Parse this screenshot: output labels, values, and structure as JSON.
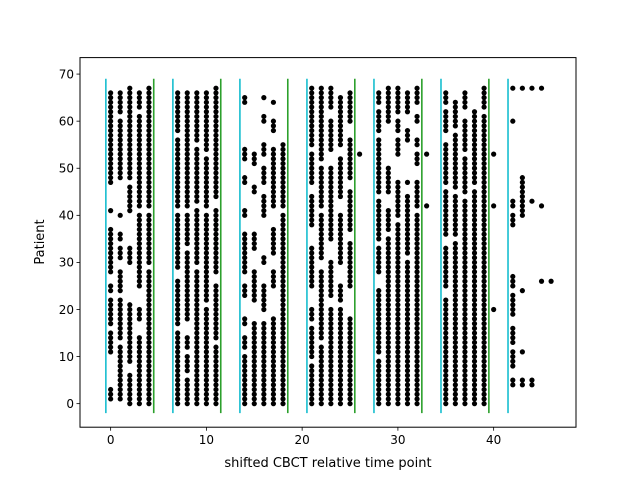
{
  "chart_data": {
    "type": "scatter",
    "title": "",
    "xlabel": "shifted CBCT relative time point",
    "ylabel": "Patient",
    "xlim": [
      -3.2,
      48.6
    ],
    "ylim": [
      -5,
      73.5
    ],
    "xticks": [
      0,
      10,
      20,
      30,
      40
    ],
    "yticks": [
      0,
      10,
      20,
      30,
      40,
      50,
      60,
      70
    ],
    "grid": false,
    "legend": "none",
    "marker_color": "#000000",
    "note": "Points are estimated: each column of dots represents patients (y) imaged at a relative CBCT time point (x).",
    "columns": [
      {
        "x": 0,
        "y_ranges": [
          [
            1,
            3
          ],
          [
            11,
            15
          ],
          [
            17,
            22
          ],
          [
            24,
            25
          ],
          [
            28,
            37
          ],
          [
            41,
            41
          ],
          [
            47,
            66
          ]
        ]
      },
      {
        "x": 1,
        "y_ranges": [
          [
            1,
            12
          ],
          [
            14,
            22
          ],
          [
            24,
            28
          ],
          [
            31,
            33
          ],
          [
            35,
            36
          ],
          [
            40,
            40
          ],
          [
            48,
            60
          ],
          [
            62,
            66
          ]
        ]
      },
      {
        "x": 2,
        "y_ranges": [
          [
            0,
            6
          ],
          [
            9,
            21
          ],
          [
            30,
            33
          ],
          [
            41,
            46
          ],
          [
            48,
            67
          ]
        ]
      },
      {
        "x": 3,
        "y_ranges": [
          [
            0,
            14
          ],
          [
            18,
            20
          ],
          [
            25,
            40
          ],
          [
            42,
            61
          ],
          [
            63,
            66
          ]
        ]
      },
      {
        "x": 4,
        "y_ranges": [
          [
            0,
            28
          ],
          [
            30,
            40
          ],
          [
            42,
            67
          ]
        ]
      },
      {
        "x": 7,
        "y_ranges": [
          [
            0,
            15
          ],
          [
            17,
            26
          ],
          [
            29,
            40
          ],
          [
            42,
            56
          ],
          [
            58,
            66
          ]
        ]
      },
      {
        "x": 8,
        "y_ranges": [
          [
            0,
            5
          ],
          [
            7,
            10
          ],
          [
            12,
            14
          ],
          [
            18,
            32
          ],
          [
            34,
            40
          ],
          [
            42,
            66
          ]
        ]
      },
      {
        "x": 9,
        "y_ranges": [
          [
            0,
            28
          ],
          [
            30,
            41
          ],
          [
            43,
            54
          ],
          [
            56,
            66
          ]
        ]
      },
      {
        "x": 10,
        "y_ranges": [
          [
            0,
            20
          ],
          [
            22,
            40
          ],
          [
            42,
            52
          ],
          [
            54,
            66
          ]
        ]
      },
      {
        "x": 11,
        "y_ranges": [
          [
            0,
            12
          ],
          [
            14,
            25
          ],
          [
            28,
            41
          ],
          [
            44,
            67
          ]
        ]
      },
      {
        "x": 14,
        "y_ranges": [
          [
            0,
            10
          ],
          [
            12,
            14
          ],
          [
            17,
            18
          ],
          [
            23,
            25
          ],
          [
            28,
            36
          ],
          [
            40,
            41
          ],
          [
            47,
            48
          ],
          [
            52,
            54
          ],
          [
            64,
            65
          ]
        ]
      },
      {
        "x": 15,
        "y_ranges": [
          [
            0,
            17
          ],
          [
            22,
            28
          ],
          [
            33,
            36
          ],
          [
            45,
            46
          ],
          [
            51,
            53
          ]
        ]
      },
      {
        "x": 16,
        "y_ranges": [
          [
            0,
            17
          ],
          [
            20,
            25
          ],
          [
            30,
            31
          ],
          [
            40,
            44
          ],
          [
            47,
            50
          ],
          [
            53,
            55
          ],
          [
            60,
            61
          ],
          [
            65,
            65
          ]
        ]
      },
      {
        "x": 17,
        "y_ranges": [
          [
            0,
            18
          ],
          [
            25,
            28
          ],
          [
            32,
            37
          ],
          [
            42,
            54
          ],
          [
            58,
            60
          ],
          [
            64,
            64
          ]
        ]
      },
      {
        "x": 18,
        "y_ranges": [
          [
            0,
            40
          ],
          [
            42,
            55
          ]
        ]
      },
      {
        "x": 21,
        "y_ranges": [
          [
            0,
            8
          ],
          [
            10,
            16
          ],
          [
            18,
            20
          ],
          [
            25,
            33
          ],
          [
            38,
            44
          ],
          [
            47,
            53
          ],
          [
            55,
            67
          ]
        ]
      },
      {
        "x": 22,
        "y_ranges": [
          [
            0,
            12
          ],
          [
            14,
            28
          ],
          [
            31,
            40
          ],
          [
            42,
            50
          ],
          [
            52,
            67
          ]
        ]
      },
      {
        "x": 23,
        "y_ranges": [
          [
            0,
            20
          ],
          [
            23,
            30
          ],
          [
            35,
            50
          ],
          [
            54,
            60
          ],
          [
            63,
            67
          ]
        ]
      },
      {
        "x": 24,
        "y_ranges": [
          [
            0,
            20
          ],
          [
            22,
            25
          ],
          [
            30,
            40
          ],
          [
            44,
            52
          ],
          [
            55,
            65
          ]
        ]
      },
      {
        "x": 25,
        "y_ranges": [
          [
            0,
            18
          ],
          [
            25,
            34
          ],
          [
            37,
            45
          ],
          [
            48,
            56
          ],
          [
            60,
            66
          ]
        ]
      },
      {
        "x": 26,
        "y_ranges": [
          [
            53,
            53
          ]
        ]
      },
      {
        "x": 28,
        "y_ranges": [
          [
            0,
            9
          ],
          [
            11,
            24
          ],
          [
            28,
            33
          ],
          [
            35,
            43
          ],
          [
            45,
            56
          ],
          [
            58,
            62
          ],
          [
            64,
            66
          ]
        ]
      },
      {
        "x": 29,
        "y_ranges": [
          [
            0,
            35
          ],
          [
            37,
            41
          ],
          [
            45,
            50
          ],
          [
            60,
            67
          ]
        ]
      },
      {
        "x": 30,
        "y_ranges": [
          [
            0,
            38
          ],
          [
            40,
            47
          ],
          [
            53,
            56
          ],
          [
            58,
            60
          ],
          [
            62,
            67
          ]
        ]
      },
      {
        "x": 31,
        "y_ranges": [
          [
            0,
            30
          ],
          [
            32,
            44
          ],
          [
            47,
            47
          ],
          [
            56,
            58
          ],
          [
            62,
            66
          ]
        ]
      },
      {
        "x": 32,
        "y_ranges": [
          [
            0,
            40
          ],
          [
            42,
            47
          ],
          [
            51,
            53
          ],
          [
            55,
            56
          ],
          [
            60,
            61
          ],
          [
            64,
            67
          ]
        ]
      },
      {
        "x": 33,
        "y_ranges": [
          [
            42,
            42
          ],
          [
            53,
            53
          ]
        ]
      },
      {
        "x": 35,
        "y_ranges": [
          [
            0,
            22
          ],
          [
            25,
            33
          ],
          [
            36,
            45
          ],
          [
            47,
            55
          ],
          [
            58,
            62
          ],
          [
            64,
            66
          ]
        ]
      },
      {
        "x": 36,
        "y_ranges": [
          [
            0,
            34
          ],
          [
            36,
            44
          ],
          [
            46,
            57
          ],
          [
            59,
            64
          ]
        ]
      },
      {
        "x": 37,
        "y_ranges": [
          [
            0,
            43
          ],
          [
            45,
            52
          ],
          [
            54,
            60
          ],
          [
            63,
            66
          ]
        ]
      },
      {
        "x": 38,
        "y_ranges": [
          [
            0,
            45
          ],
          [
            47,
            62
          ]
        ]
      },
      {
        "x": 39,
        "y_ranges": [
          [
            0,
            61
          ],
          [
            63,
            67
          ]
        ]
      },
      {
        "x": 40,
        "y_ranges": [
          [
            20,
            20
          ],
          [
            42,
            42
          ],
          [
            53,
            53
          ]
        ]
      },
      {
        "x": 42,
        "y_ranges": [
          [
            4,
            5
          ],
          [
            8,
            11
          ],
          [
            13,
            16
          ],
          [
            19,
            23
          ],
          [
            25,
            27
          ],
          [
            38,
            40
          ],
          [
            42,
            43
          ],
          [
            60,
            60
          ],
          [
            67,
            67
          ]
        ]
      },
      {
        "x": 43,
        "y_ranges": [
          [
            4,
            5
          ],
          [
            11,
            11
          ],
          [
            24,
            24
          ],
          [
            40,
            48
          ],
          [
            67,
            67
          ]
        ]
      },
      {
        "x": 44,
        "y_ranges": [
          [
            4,
            5
          ],
          [
            43,
            43
          ],
          [
            67,
            67
          ]
        ]
      },
      {
        "x": 45,
        "y_ranges": [
          [
            26,
            26
          ],
          [
            42,
            42
          ],
          [
            67,
            67
          ]
        ]
      },
      {
        "x": 46,
        "y_ranges": [
          [
            26,
            26
          ]
        ]
      }
    ],
    "vertical_lines": [
      {
        "x": -0.5,
        "ymin": -2,
        "ymax": 69,
        "color": "#17becf"
      },
      {
        "x": 4.5,
        "ymin": -2,
        "ymax": 69,
        "color": "#2ca02c"
      },
      {
        "x": 6.5,
        "ymin": -2,
        "ymax": 69,
        "color": "#17becf"
      },
      {
        "x": 11.5,
        "ymin": -2,
        "ymax": 69,
        "color": "#2ca02c"
      },
      {
        "x": 13.5,
        "ymin": -2,
        "ymax": 69,
        "color": "#17becf"
      },
      {
        "x": 18.5,
        "ymin": -2,
        "ymax": 69,
        "color": "#2ca02c"
      },
      {
        "x": 20.5,
        "ymin": -2,
        "ymax": 69,
        "color": "#17becf"
      },
      {
        "x": 25.5,
        "ymin": -2,
        "ymax": 69,
        "color": "#2ca02c"
      },
      {
        "x": 27.5,
        "ymin": -2,
        "ymax": 69,
        "color": "#17becf"
      },
      {
        "x": 32.5,
        "ymin": -2,
        "ymax": 69,
        "color": "#2ca02c"
      },
      {
        "x": 34.5,
        "ymin": -2,
        "ymax": 69,
        "color": "#17becf"
      },
      {
        "x": 39.5,
        "ymin": -2,
        "ymax": 69,
        "color": "#2ca02c"
      },
      {
        "x": 41.5,
        "ymin": -2,
        "ymax": 69,
        "color": "#17becf"
      }
    ]
  }
}
